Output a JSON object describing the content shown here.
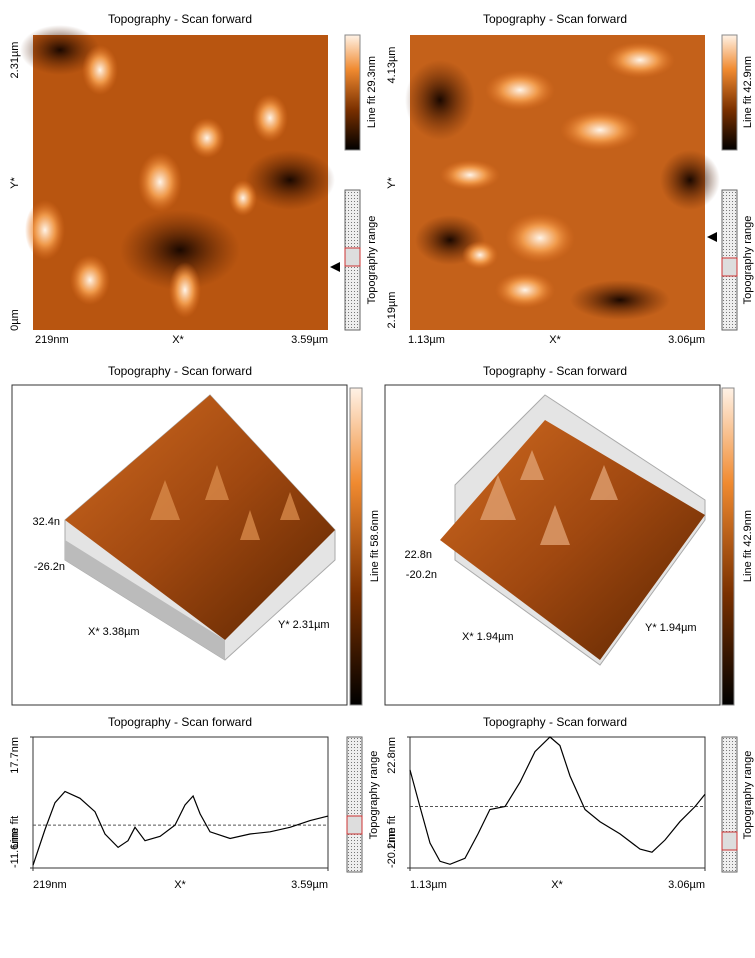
{
  "images": [
    {
      "title": "Topography - Scan forward",
      "y_top": "2.31µm",
      "y_mid": "Y*",
      "y_bottom": "0µm",
      "x_left": "219nm",
      "x_mid": "X*",
      "x_right": "3.59µm",
      "colorbar_label": "Line fit 29.3nm",
      "range_label": "Topography range"
    },
    {
      "title": "Topography - Scan forward",
      "y_top": "4.13µm",
      "y_mid": "Y*",
      "y_bottom": "2.19µm",
      "x_left": "1.13µm",
      "x_mid": "X*",
      "x_right": "3.06µm",
      "colorbar_label": "Line fit 42.9nm",
      "range_label": "Topography range"
    }
  ],
  "surfaces": [
    {
      "title": "Topography - Scan forward",
      "z_top": "32.4n",
      "z_bottom": "-26.2n",
      "x_axis": "X* 3.38µm",
      "y_axis": "Y* 2.31µm",
      "colorbar_label": "Line fit 58.6nm"
    },
    {
      "title": "Topography - Scan forward",
      "z_top": "22.8n",
      "z_bottom": "-20.2n",
      "x_axis": "X* 1.94µm",
      "y_axis": "Y* 1.94µm",
      "colorbar_label": "Line fit 42.9nm"
    }
  ],
  "profiles": [
    {
      "title": "Topography - Scan forward",
      "xlabel": "X*",
      "ylabel": "Line fit",
      "range_label": "Topography range",
      "xlim": [
        0.219,
        3.59
      ],
      "xticks": [
        {
          "value": 0.219,
          "label": "219nm"
        },
        {
          "value": 3.59,
          "label": "3.59µm"
        }
      ],
      "ylim": [
        -11.6,
        17.7
      ],
      "yticks": [
        {
          "value": -11.6,
          "label": "-11.6nm"
        },
        {
          "value": 17.7,
          "label": "17.7nm"
        }
      ],
      "mean_line": -2,
      "x": [
        0.219,
        0.356,
        0.47,
        0.585,
        0.756,
        0.928,
        1.042,
        1.191,
        1.305,
        1.385,
        1.499,
        1.671,
        1.842,
        1.956,
        2.048,
        2.128,
        2.242,
        2.471,
        2.699,
        2.928,
        3.156,
        3.385,
        3.59
      ],
      "values": [
        -11,
        -3,
        3,
        5.5,
        4,
        1,
        -4,
        -7,
        -5.5,
        -2.5,
        -5.5,
        -4.5,
        -2,
        2.5,
        4.5,
        0.5,
        -3.5,
        -5,
        -4,
        -3.5,
        -2.5,
        -1,
        0
      ]
    },
    {
      "title": "Topography - Scan forward",
      "xlabel": "X*",
      "ylabel": "Line fit",
      "range_label": "Topography range",
      "xlim": [
        1.13,
        3.06
      ],
      "xticks": [
        {
          "value": 1.13,
          "label": "1.13µm"
        },
        {
          "value": 3.06,
          "label": "3.06µm"
        }
      ],
      "ylim": [
        -20.2,
        22.8
      ],
      "yticks": [
        {
          "value": -20.2,
          "label": "-20.2nm"
        },
        {
          "value": 22.8,
          "label": "22.8nm"
        }
      ],
      "mean_line": 0,
      "x": [
        1.13,
        1.195,
        1.261,
        1.326,
        1.392,
        1.49,
        1.575,
        1.653,
        1.752,
        1.85,
        1.948,
        2.046,
        2.111,
        2.177,
        2.275,
        2.373,
        2.504,
        2.635,
        2.713,
        2.798,
        2.896,
        2.995,
        3.06
      ],
      "values": [
        12,
        0,
        -12,
        -18,
        -19,
        -17,
        -9,
        -1,
        0,
        8,
        18,
        22.8,
        20,
        10,
        -1,
        -5,
        -9,
        -14,
        -15,
        -11,
        -5,
        0,
        4
      ]
    }
  ]
}
